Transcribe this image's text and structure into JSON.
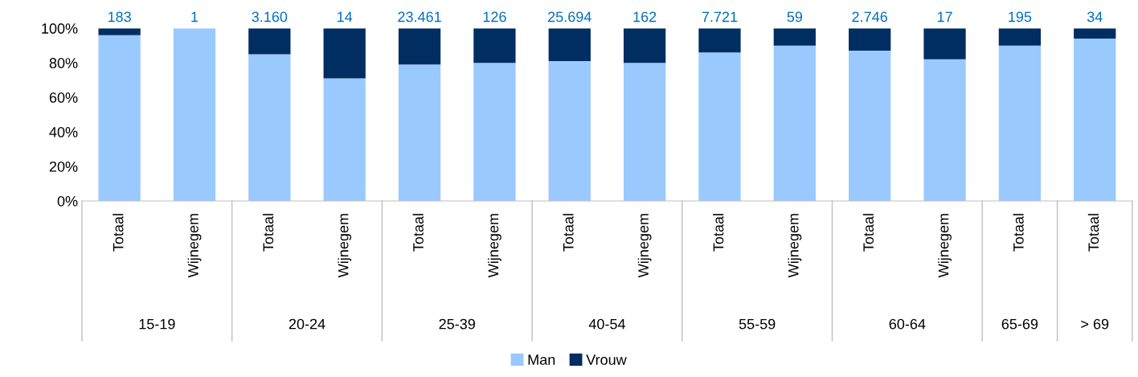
{
  "chart_data": {
    "type": "bar",
    "stacked": true,
    "categories": [
      "Totaal",
      "Wijnegem",
      "Totaal",
      "Wijnegem",
      "Totaal",
      "Wijnegem",
      "Totaal",
      "Wijnegem",
      "Totaal",
      "Wijnegem",
      "Totaal",
      "Wijnegem",
      "Totaal",
      "Totaal"
    ],
    "series": [
      {
        "name": "Man",
        "color": "#99c9ff",
        "values": [
          96,
          100,
          85,
          71,
          79,
          80,
          81,
          80,
          86,
          90,
          87,
          82,
          90,
          94
        ]
      },
      {
        "name": "Vrouw",
        "color": "#002d62",
        "values": [
          4,
          0,
          15,
          29,
          21,
          20,
          19,
          20,
          14,
          10,
          13,
          18,
          10,
          6
        ]
      }
    ],
    "annotations": [
      "183",
      "1",
      "3.160",
      "14",
      "23.461",
      "126",
      "25.694",
      "162",
      "7.721",
      "59",
      "2.746",
      "17",
      "195",
      "34",
      "15-19",
      "20-24",
      "25-39",
      "40-54",
      "55-59",
      "60-64",
      "65-69",
      "> 69"
    ],
    "ylim": [
      0,
      100
    ],
    "yticks": [
      {
        "value": 0,
        "label": "0%"
      },
      {
        "value": 20,
        "label": "20%"
      },
      {
        "value": 40,
        "label": "40%"
      },
      {
        "value": 60,
        "label": "60%"
      },
      {
        "value": 80,
        "label": "80%"
      },
      {
        "value": 100,
        "label": "100%"
      }
    ],
    "grid": false,
    "legend": "bottom"
  }
}
